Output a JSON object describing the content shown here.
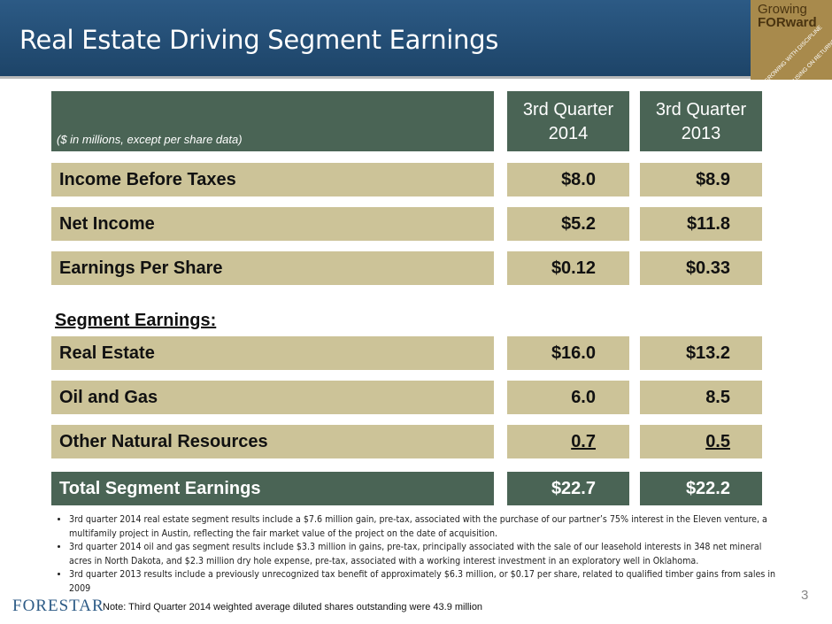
{
  "header": {
    "title": "Real Estate Driving Segment Earnings"
  },
  "logo": {
    "line1": "Growing",
    "line2": "FORward",
    "tagline1": "GROWING WITH DISCIPLINE",
    "tagline2": "FOCUSING ON RETURNS"
  },
  "table": {
    "note": "($ in millions, except per share data)",
    "columns": [
      "3rd Quarter\n2014",
      "3rd Quarter\n2013"
    ],
    "rows": [
      [
        "Income Before Taxes",
        "$8.0",
        "$8.9"
      ],
      [
        "Net Income",
        "$5.2",
        "$11.8"
      ],
      [
        "Earnings Per Share",
        "$0.12",
        "$0.33"
      ]
    ],
    "segment_heading": "Segment Earnings:",
    "segment_rows": [
      [
        "Real Estate",
        "$16.0",
        "$13.2"
      ],
      [
        "Oil and Gas",
        "6.0",
        "8.5"
      ],
      [
        "Other Natural Resources",
        "0.7",
        "0.5"
      ]
    ],
    "total": [
      "Total Segment Earnings",
      "$22.7",
      "$22.2"
    ]
  },
  "bullets": [
    "3rd quarter 2014 real estate segment results include a $7.6 million gain, pre-tax, associated with the purchase of our partner’s 75% interest in the Eleven venture, a multifamily project in Austin, reflecting the fair market value of the project on the date of acquisition.",
    "3rd quarter 2014 oil and gas segment results include $3.3 million in gains, pre-tax, principally associated with the sale of our leasehold interests in 348 net mineral acres in North Dakota, and $2.3 million dry hole expense, pre-tax, associated with a working interest investment in an exploratory well in Oklahoma.",
    "3rd quarter 2013 results include a previously unrecognized tax benefit of approximately $6.3 million, or $0.17 per share, related to qualified timber gains from sales in 2009"
  ],
  "footer": {
    "company": "FORESTAR",
    "note": "Note:  Third Quarter 2014 weighted average diluted shares outstanding were 43.9 million",
    "page": "3"
  }
}
